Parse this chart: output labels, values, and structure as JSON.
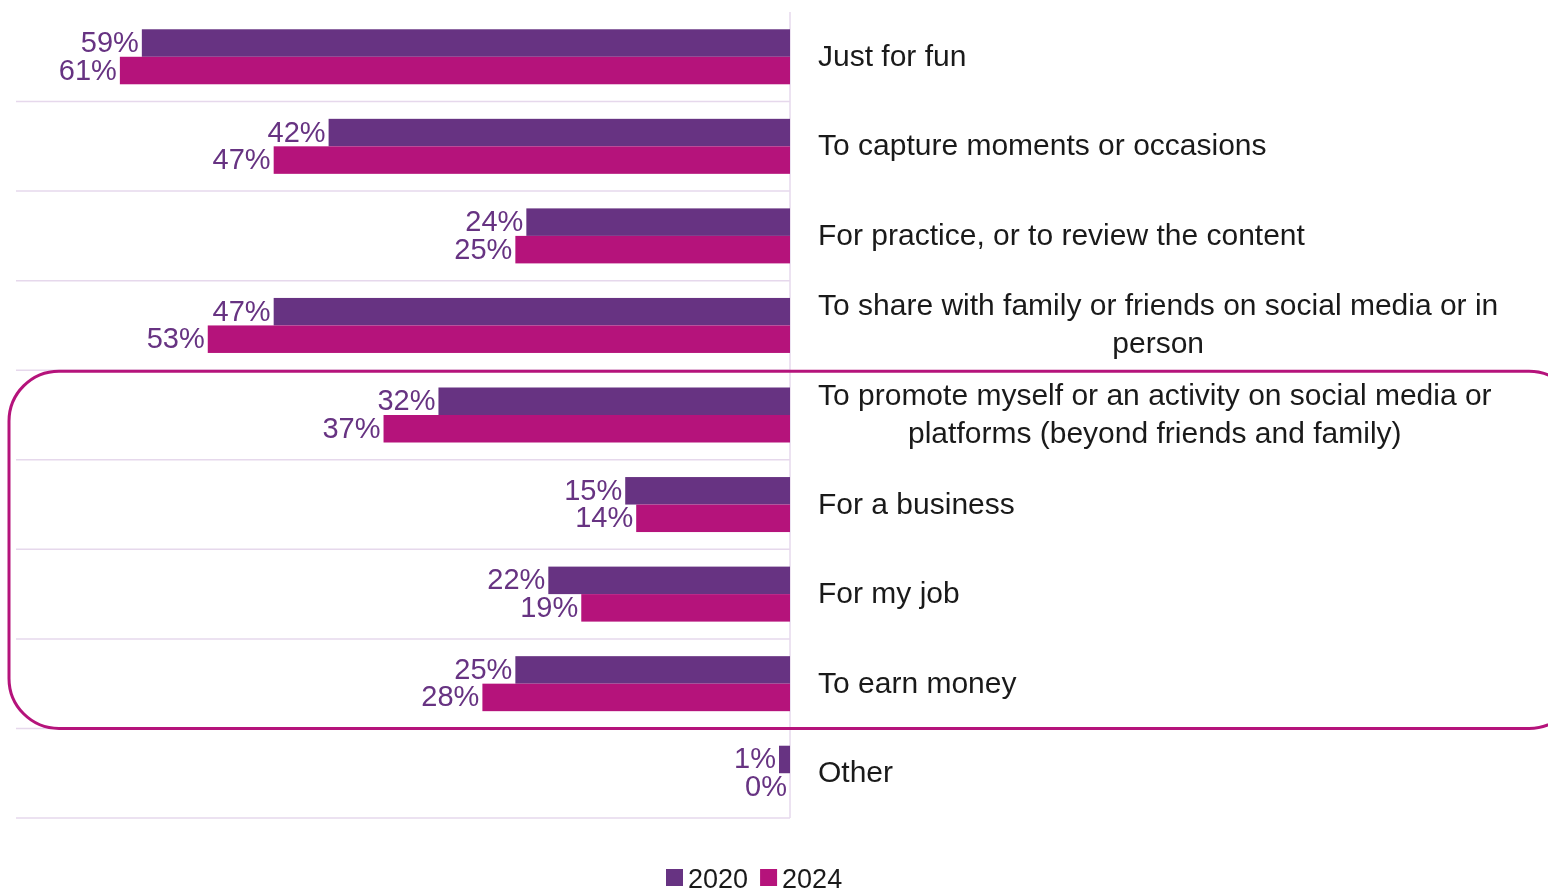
{
  "chart_data": {
    "type": "bar",
    "orientation": "horizontal",
    "categories": [
      "Just for fun",
      "To capture moments or occasions",
      "For practice, or to review the content",
      "To share with family or friends on social media or in person",
      "To promote myself or an activity on social media or platforms (beyond friends and family)",
      "For a business",
      "For my job",
      "To earn money",
      "Other"
    ],
    "series": [
      {
        "name": "2020",
        "color": "#673382",
        "values": [
          59,
          42,
          24,
          47,
          32,
          15,
          22,
          25,
          1
        ],
        "value_labels": [
          "59%",
          "42%",
          "24%",
          "47%",
          "32%",
          "15%",
          "22%",
          "25%",
          "1%"
        ]
      },
      {
        "name": "2024",
        "color": "#b5137b",
        "values": [
          61,
          47,
          25,
          53,
          37,
          14,
          19,
          28,
          0
        ],
        "value_labels": [
          "61%",
          "47%",
          "25%",
          "53%",
          "37%",
          "14%",
          "19%",
          "28%",
          "0%"
        ]
      }
    ],
    "legend": "bottom",
    "grid": "y"
  }
}
